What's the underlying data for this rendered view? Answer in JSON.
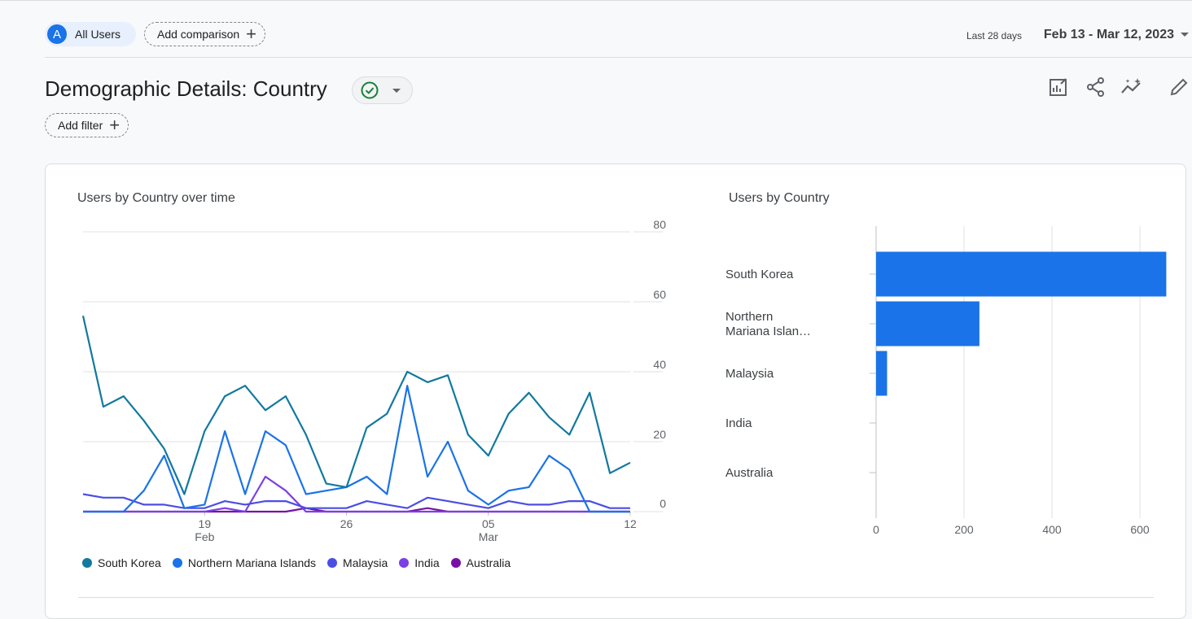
{
  "toolbar": {
    "avatar_letter": "A",
    "segment_label": "All Users",
    "add_comparison_label": "Add comparison",
    "date_range_prefix": "Last 28 days",
    "date_range": "Feb 13 - Mar 12, 2023"
  },
  "header": {
    "title": "Demographic Details: Country",
    "add_filter_label": "Add filter",
    "icons": [
      "customize-report-icon",
      "share-icon",
      "insights-icon",
      "edit-icon"
    ]
  },
  "line_chart": {
    "title": "Users by Country over time"
  },
  "bar_chart": {
    "title": "Users by Country"
  },
  "colors": {
    "South Korea": "#12799f",
    "Northern Mariana Islands": "#1a73e8",
    "Malaysia": "#4b4ee4",
    "India": "#7b3fe3",
    "Australia": "#7811a3",
    "bar": "#1a73e8"
  },
  "chart_data": [
    {
      "type": "line",
      "title": "Users by Country over time",
      "x_ticks": [
        {
          "label": "19",
          "sublabel": "Feb",
          "index": 6
        },
        {
          "label": "26",
          "sublabel": "",
          "index": 13
        },
        {
          "label": "05",
          "sublabel": "Mar",
          "index": 20
        },
        {
          "label": "12",
          "sublabel": "",
          "index": 27
        }
      ],
      "x": [
        "Feb 13",
        "Feb 14",
        "Feb 15",
        "Feb 16",
        "Feb 17",
        "Feb 18",
        "Feb 19",
        "Feb 20",
        "Feb 21",
        "Feb 22",
        "Feb 23",
        "Feb 24",
        "Feb 25",
        "Feb 26",
        "Feb 27",
        "Feb 28",
        "Mar 1",
        "Mar 2",
        "Mar 3",
        "Mar 4",
        "Mar 5",
        "Mar 6",
        "Mar 7",
        "Mar 8",
        "Mar 9",
        "Mar 10",
        "Mar 11",
        "Mar 12"
      ],
      "ylim": [
        0,
        80
      ],
      "y_ticks": [
        0,
        20,
        40,
        60,
        80
      ],
      "y_axis_side": "right",
      "grid": true,
      "legend_position": "bottom",
      "series": [
        {
          "name": "South Korea",
          "values": [
            56,
            30,
            33,
            26,
            18,
            5,
            23,
            33,
            36,
            29,
            33,
            22,
            8,
            7,
            24,
            28,
            40,
            37,
            39,
            22,
            16,
            28,
            34,
            27,
            22,
            34,
            11,
            14
          ]
        },
        {
          "name": "Northern Mariana Islands",
          "values": [
            0,
            0,
            0,
            6,
            16,
            1,
            2,
            23,
            5,
            23,
            19,
            5,
            6,
            7,
            10,
            5,
            36,
            10,
            20,
            6,
            2,
            6,
            7,
            16,
            12,
            0,
            0,
            0
          ]
        },
        {
          "name": "Malaysia",
          "values": [
            5,
            4,
            4,
            2,
            2,
            1,
            1,
            3,
            2,
            3,
            3,
            1,
            1,
            1,
            3,
            2,
            1,
            4,
            3,
            2,
            1,
            3,
            2,
            2,
            3,
            3,
            1,
            1
          ]
        },
        {
          "name": "India",
          "values": [
            0,
            0,
            0,
            0,
            0,
            0,
            0,
            1,
            0,
            10,
            6,
            0,
            0,
            0,
            0,
            0,
            0,
            0,
            0,
            0,
            0,
            0,
            0,
            0,
            0,
            0,
            0,
            0
          ]
        },
        {
          "name": "Australia",
          "values": [
            0,
            0,
            0,
            0,
            0,
            0,
            0,
            0,
            0,
            0,
            0,
            1,
            0,
            0,
            0,
            0,
            0,
            1,
            0,
            0,
            0,
            0,
            0,
            0,
            0,
            0,
            0,
            0
          ]
        }
      ]
    },
    {
      "type": "bar",
      "orientation": "horizontal",
      "title": "Users by Country",
      "categories": [
        "South Korea",
        "Northern\nMariana Islan…",
        "Malaysia",
        "India",
        "Australia"
      ],
      "values": [
        660,
        235,
        25,
        0,
        0
      ],
      "xlim": [
        0,
        700
      ],
      "x_ticks": [
        0,
        200,
        400,
        600
      ],
      "grid": true
    }
  ]
}
